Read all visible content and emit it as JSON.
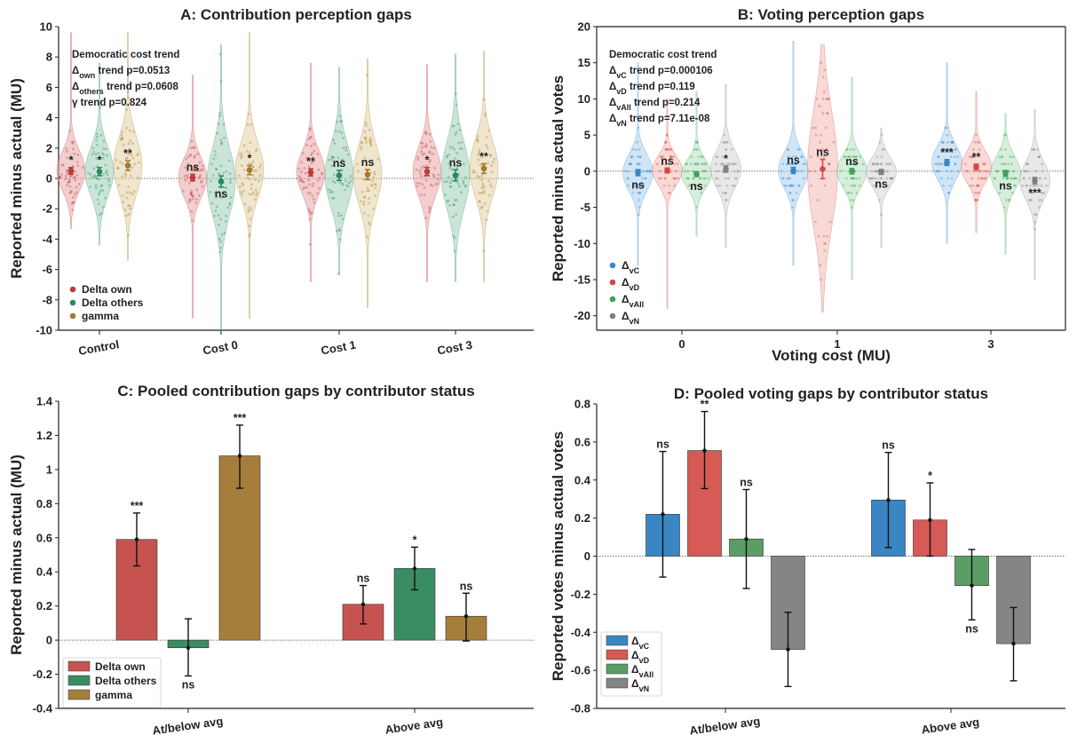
{
  "chart_data": [
    {
      "id": "A",
      "type": "violin",
      "title": "A: Contribution perception gaps",
      "ylabel": "Reported minus actual (MU)",
      "xlabel": "",
      "ylim": [
        -10,
        10
      ],
      "yticks": [
        -10,
        -8,
        -6,
        -4,
        -2,
        0,
        2,
        4,
        6,
        8,
        10
      ],
      "categories": [
        "Control",
        "Cost 0",
        "Cost 1",
        "Cost 3"
      ],
      "series": [
        {
          "name": "Delta own",
          "color": "#c03a3a",
          "fill": "#e8a5a5",
          "means": [
            0.5,
            0.05,
            0.4,
            0.45
          ],
          "sd": [
            1.3,
            1.3,
            1.4,
            1.6
          ],
          "ranges": [
            [
              -3.3,
              9.6
            ],
            [
              -9.2,
              6.8
            ],
            [
              -6.8,
              7.6
            ],
            [
              -6.8,
              7.5
            ]
          ],
          "sig": [
            "*",
            "ns",
            "**",
            "*"
          ],
          "sig_below": [
            false,
            false,
            false,
            false
          ]
        },
        {
          "name": "Delta others",
          "color": "#2a8a5a",
          "fill": "#9fd0b8",
          "means": [
            0.45,
            -0.2,
            0.2,
            0.2
          ],
          "sd": [
            1.6,
            2.2,
            2.0,
            2.2
          ],
          "ranges": [
            [
              -4.4,
              7.6
            ],
            [
              -10,
              8.8
            ],
            [
              -6.3,
              7.3
            ],
            [
              -6.8,
              8.2
            ]
          ],
          "sig": [
            "*",
            "ns",
            "ns",
            "ns"
          ],
          "sig_below": [
            false,
            true,
            false,
            false
          ]
        },
        {
          "name": "gamma",
          "color": "#a57a2e",
          "fill": "#e3cfa4",
          "means": [
            0.85,
            0.55,
            0.25,
            0.65
          ],
          "sd": [
            1.9,
            1.8,
            2.0,
            1.9
          ],
          "ranges": [
            [
              -5.4,
              9.6
            ],
            [
              -9.2,
              9.6
            ],
            [
              -8.5,
              7.9
            ],
            [
              -6.8,
              8.4
            ]
          ],
          "sig": [
            "**",
            "*",
            "ns",
            "**"
          ],
          "sig_below": [
            false,
            false,
            false,
            false
          ]
        }
      ],
      "annotation": [
        {
          "text": "Democratic cost trend"
        },
        {
          "sym": "Δ",
          "sub": "own",
          "rest": " trend p=0.0513"
        },
        {
          "sym": "Δ",
          "sub": "others",
          "rest": " trend p=0.0608"
        },
        {
          "sym": "",
          "sub": "",
          "rest": "γ trend p=0.824"
        }
      ],
      "legend_loc": "lower-left"
    },
    {
      "id": "B",
      "type": "violin",
      "title": "B: Voting perception gaps",
      "ylabel": "Reported minus actual votes",
      "xlabel": "Voting cost (MU)",
      "ylim": [
        -22,
        20
      ],
      "yticks": [
        -20,
        -15,
        -10,
        -5,
        0,
        5,
        10,
        15,
        20
      ],
      "categories": [
        "0",
        "1",
        "3"
      ],
      "series": [
        {
          "name": "vC",
          "color": "#3a86c4",
          "fill": "#a9cfee",
          "means": [
            -0.2,
            0.1,
            1.2
          ],
          "sd": [
            2.5,
            2.5,
            2.4
          ],
          "ranges": [
            [
              -13,
              15
            ],
            [
              -13,
              18
            ],
            [
              -10,
              15
            ]
          ],
          "sig": [
            "ns",
            "ns",
            "***"
          ],
          "sig_below": [
            true,
            false,
            false
          ]
        },
        {
          "name": "vD",
          "color": "#d24a45",
          "fill": "#f3b9b5",
          "means": [
            0.1,
            0.3,
            0.6
          ],
          "sd": [
            2.0,
            8.0,
            2.2
          ],
          "ranges": [
            [
              -19,
              10
            ],
            [
              -19.5,
              17.5
            ],
            [
              -8.5,
              11
            ]
          ],
          "sig": [
            "ns",
            "ns",
            "**"
          ],
          "sig_below": [
            false,
            false,
            false
          ]
        },
        {
          "name": "vAll",
          "color": "#3fa35a",
          "fill": "#b5e0bd",
          "means": [
            -0.4,
            0.0,
            -0.3
          ],
          "sd": [
            2.0,
            2.2,
            2.4
          ],
          "ranges": [
            [
              -9,
              11
            ],
            [
              -15,
              13
            ],
            [
              -11.5,
              8
            ]
          ],
          "sig": [
            "ns",
            "ns",
            "ns"
          ],
          "sig_below": [
            true,
            false,
            true
          ]
        },
        {
          "name": "vN",
          "color": "#7f7f7f",
          "fill": "#d6d6d6",
          "means": [
            0.3,
            -0.1,
            -1.3
          ],
          "sd": [
            2.6,
            2.0,
            2.6
          ],
          "ranges": [
            [
              -10.5,
              12
            ],
            [
              -10.5,
              6
            ],
            [
              -15,
              8.5
            ]
          ],
          "sig": [
            "*",
            "ns",
            "***"
          ],
          "sig_below": [
            false,
            true,
            true
          ]
        }
      ],
      "annotation": [
        {
          "text": "Democratic cost trend"
        },
        {
          "sym": "Δ",
          "sub": "vC",
          "rest": " trend p=0.000106"
        },
        {
          "sym": "Δ",
          "sub": "vD",
          "rest": " trend p=0.119"
        },
        {
          "sym": "Δ",
          "sub": "vAll",
          "rest": " trend p=0.214"
        },
        {
          "sym": "Δ",
          "sub": "vN",
          "rest": " trend p=7.11e-08"
        }
      ],
      "legend_loc": "lower-left"
    },
    {
      "id": "C",
      "type": "bar",
      "title": "C: Pooled contribution gaps by contributor status",
      "ylabel": "Reported minus actual (MU)",
      "xlabel": "",
      "ylim": [
        -0.4,
        1.4
      ],
      "yticks": [
        -0.4,
        -0.2,
        0,
        0.2,
        0.4,
        0.6,
        0.8,
        1,
        1.2,
        1.4
      ],
      "categories": [
        "At/below avg",
        "Above avg"
      ],
      "series": [
        {
          "name": "Delta own",
          "color": "#c65350",
          "values": [
            0.59,
            0.21
          ],
          "err": [
            [
              0.435,
              0.745
            ],
            [
              0.095,
              0.32
            ]
          ],
          "sig": [
            "***",
            "ns"
          ],
          "sig_below": [
            false,
            false
          ]
        },
        {
          "name": "Delta others",
          "color": "#3a8c63",
          "values": [
            -0.045,
            0.42
          ],
          "err": [
            [
              -0.21,
              0.125
            ],
            [
              0.295,
              0.545
            ]
          ],
          "sig": [
            "ns",
            "*"
          ],
          "sig_below": [
            true,
            false
          ]
        },
        {
          "name": "gamma",
          "color": "#a57e3c",
          "values": [
            1.08,
            0.14
          ],
          "err": [
            [
              0.89,
              1.26
            ],
            [
              -0.005,
              0.275
            ]
          ],
          "sig": [
            "***",
            "ns"
          ],
          "sig_below": [
            false,
            false
          ]
        }
      ],
      "legend_loc": "lower-left"
    },
    {
      "id": "D",
      "type": "bar",
      "title": "D: Pooled voting gaps by contributor status",
      "ylabel": "Reported votes minus actual votes",
      "xlabel": "",
      "ylim": [
        -0.8,
        0.8
      ],
      "yticks": [
        -0.8,
        -0.6,
        -0.4,
        -0.2,
        0,
        0.2,
        0.4,
        0.6,
        0.8
      ],
      "categories": [
        "At/below avg",
        "Above avg"
      ],
      "series": [
        {
          "name": "vC",
          "color": "#3a86c4",
          "values": [
            0.22,
            0.295
          ],
          "err": [
            [
              -0.11,
              0.55
            ],
            [
              0.045,
              0.545
            ]
          ],
          "sig": [
            "ns",
            "ns"
          ],
          "sig_below": [
            false,
            false
          ]
        },
        {
          "name": "vD",
          "color": "#d65a55",
          "values": [
            0.555,
            0.19
          ],
          "err": [
            [
              0.355,
              0.76
            ],
            [
              0.0,
              0.385
            ]
          ],
          "sig": [
            "**",
            "*"
          ],
          "sig_below": [
            false,
            false
          ]
        },
        {
          "name": "vAll",
          "color": "#5a9e66",
          "values": [
            0.09,
            -0.155
          ],
          "err": [
            [
              -0.17,
              0.35
            ],
            [
              -0.335,
              0.035
            ]
          ],
          "sig": [
            "ns",
            "ns"
          ],
          "sig_below": [
            false,
            true
          ]
        },
        {
          "name": "vN",
          "color": "#858585",
          "values": [
            -0.49,
            -0.46
          ],
          "err": [
            [
              -0.685,
              -0.295
            ],
            [
              -0.655,
              -0.27
            ]
          ],
          "sig": [
            "",
            ""
          ],
          "sig_below": [
            false,
            false
          ]
        }
      ],
      "legend_loc": "lower-left"
    }
  ]
}
